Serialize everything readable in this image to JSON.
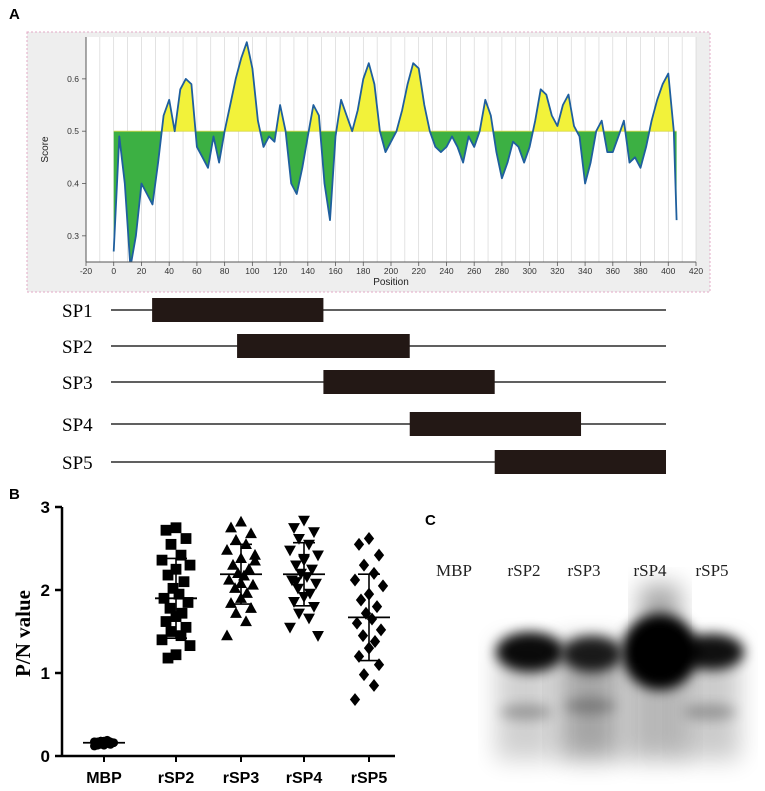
{
  "panels": {
    "a": "A",
    "b": "B",
    "c": "C"
  },
  "colors": {
    "above": "#f2f23a",
    "below": "#3cb043",
    "line": "#1f5f9e",
    "bar": "#231815"
  },
  "chart_data": [
    {
      "type": "area",
      "panel": "A",
      "xlabel": "Position",
      "ylabel": "Score",
      "xlim": [
        -20,
        420
      ],
      "ylim": [
        0.25,
        0.68
      ],
      "threshold": 0.5,
      "x_ticks": [
        "-20",
        "0",
        "20",
        "40",
        "60",
        "80",
        "100",
        "120",
        "140",
        "160",
        "180",
        "200",
        "220",
        "240",
        "260",
        "280",
        "300",
        "320",
        "340",
        "360",
        "380",
        "400",
        "420"
      ],
      "y_ticks": [
        "0.3",
        "0.4",
        "0.5",
        "0.6"
      ],
      "x": [
        0,
        4,
        8,
        12,
        16,
        20,
        24,
        28,
        32,
        36,
        40,
        44,
        48,
        52,
        56,
        60,
        64,
        68,
        72,
        76,
        80,
        84,
        88,
        92,
        96,
        100,
        104,
        108,
        112,
        116,
        120,
        124,
        128,
        132,
        136,
        140,
        144,
        148,
        152,
        156,
        160,
        164,
        168,
        172,
        176,
        180,
        184,
        188,
        192,
        196,
        200,
        204,
        208,
        212,
        216,
        220,
        224,
        228,
        232,
        236,
        240,
        244,
        248,
        252,
        256,
        260,
        264,
        268,
        272,
        276,
        280,
        284,
        288,
        292,
        296,
        300,
        304,
        308,
        312,
        316,
        320,
        324,
        328,
        332,
        336,
        340,
        344,
        348,
        352,
        356,
        360,
        364,
        368,
        372,
        376,
        380,
        384,
        388,
        392,
        396,
        400,
        404,
        406
      ],
      "y": [
        0.27,
        0.49,
        0.4,
        0.24,
        0.3,
        0.4,
        0.38,
        0.36,
        0.44,
        0.53,
        0.56,
        0.5,
        0.58,
        0.6,
        0.59,
        0.47,
        0.45,
        0.43,
        0.49,
        0.44,
        0.5,
        0.55,
        0.6,
        0.64,
        0.67,
        0.62,
        0.52,
        0.47,
        0.49,
        0.48,
        0.55,
        0.5,
        0.4,
        0.38,
        0.43,
        0.49,
        0.55,
        0.53,
        0.4,
        0.33,
        0.49,
        0.56,
        0.53,
        0.5,
        0.54,
        0.6,
        0.63,
        0.59,
        0.5,
        0.46,
        0.48,
        0.5,
        0.54,
        0.59,
        0.63,
        0.62,
        0.55,
        0.5,
        0.47,
        0.46,
        0.47,
        0.49,
        0.47,
        0.44,
        0.49,
        0.47,
        0.5,
        0.56,
        0.53,
        0.46,
        0.41,
        0.44,
        0.48,
        0.47,
        0.44,
        0.47,
        0.52,
        0.58,
        0.57,
        0.53,
        0.51,
        0.55,
        0.57,
        0.51,
        0.49,
        0.4,
        0.44,
        0.5,
        0.52,
        0.46,
        0.46,
        0.49,
        0.52,
        0.44,
        0.45,
        0.43,
        0.47,
        0.52,
        0.56,
        0.59,
        0.61,
        0.5,
        0.33
      ]
    },
    {
      "type": "bar",
      "panel": "A",
      "bars": [
        {
          "label": "SP1",
          "start": 30,
          "end": 155
        },
        {
          "label": "SP2",
          "start": 92,
          "end": 218
        },
        {
          "label": "SP3",
          "start": 155,
          "end": 280
        },
        {
          "label": "SP4",
          "start": 218,
          "end": 343
        },
        {
          "label": "SP5",
          "start": 280,
          "end": 405
        }
      ],
      "track_start": 0,
      "track_end": 405
    },
    {
      "type": "scatter",
      "panel": "B",
      "ylabel": "P/N value",
      "ylim": [
        0,
        3
      ],
      "y_ticks": [
        "0",
        "1",
        "2",
        "3"
      ],
      "categories": [
        "MBP",
        "rSP2",
        "rSP3",
        "rSP4",
        "rSP5"
      ],
      "series": [
        {
          "name": "MBP",
          "marker": "circle",
          "mean": 0.16,
          "sd": 0.02,
          "values": [
            0.12,
            0.13,
            0.14,
            0.15,
            0.15,
            0.16,
            0.16,
            0.17,
            0.17,
            0.18,
            0.18,
            0.19,
            0.14,
            0.16,
            0.17,
            0.15,
            0.18,
            0.13,
            0.16,
            0.17
          ]
        },
        {
          "name": "rSP2",
          "marker": "square",
          "mean": 1.9,
          "sd": 0.48,
          "values": [
            2.75,
            2.72,
            2.62,
            2.55,
            2.42,
            2.36,
            2.3,
            2.25,
            2.18,
            2.1,
            2.02,
            1.95,
            1.9,
            1.85,
            1.78,
            1.72,
            1.68,
            1.62,
            1.55,
            1.5,
            1.45,
            1.4,
            1.33,
            1.22,
            1.18
          ]
        },
        {
          "name": "rSP3",
          "marker": "triangle-up",
          "mean": 2.19,
          "sd": 0.36,
          "values": [
            2.82,
            2.75,
            2.68,
            2.6,
            2.55,
            2.48,
            2.42,
            2.38,
            2.3,
            2.25,
            2.2,
            2.17,
            2.12,
            2.06,
            2.02,
            1.96,
            1.9,
            1.84,
            1.78,
            1.72,
            1.62,
            1.45,
            2.35,
            2.08
          ]
        },
        {
          "name": "rSP4",
          "marker": "triangle-down",
          "mean": 2.19,
          "sd": 0.38,
          "values": [
            2.84,
            2.75,
            2.7,
            2.62,
            2.55,
            2.48,
            2.42,
            2.36,
            2.3,
            2.25,
            2.2,
            2.16,
            2.12,
            2.08,
            2.02,
            1.96,
            1.92,
            1.86,
            1.8,
            1.72,
            1.66,
            1.55,
            1.45,
            2.38,
            2.1
          ]
        },
        {
          "name": "rSP5",
          "marker": "diamond",
          "mean": 1.67,
          "sd": 0.52,
          "values": [
            2.62,
            2.55,
            2.42,
            2.3,
            2.2,
            2.12,
            2.05,
            1.95,
            1.88,
            1.8,
            1.72,
            1.65,
            1.6,
            1.52,
            1.45,
            1.38,
            1.3,
            1.2,
            1.1,
            0.98,
            0.85,
            0.68
          ]
        }
      ]
    }
  ],
  "blot": {
    "lane_labels": [
      "MBP",
      "rSP2",
      "rSP3",
      "rSP4",
      "rSP5"
    ]
  }
}
